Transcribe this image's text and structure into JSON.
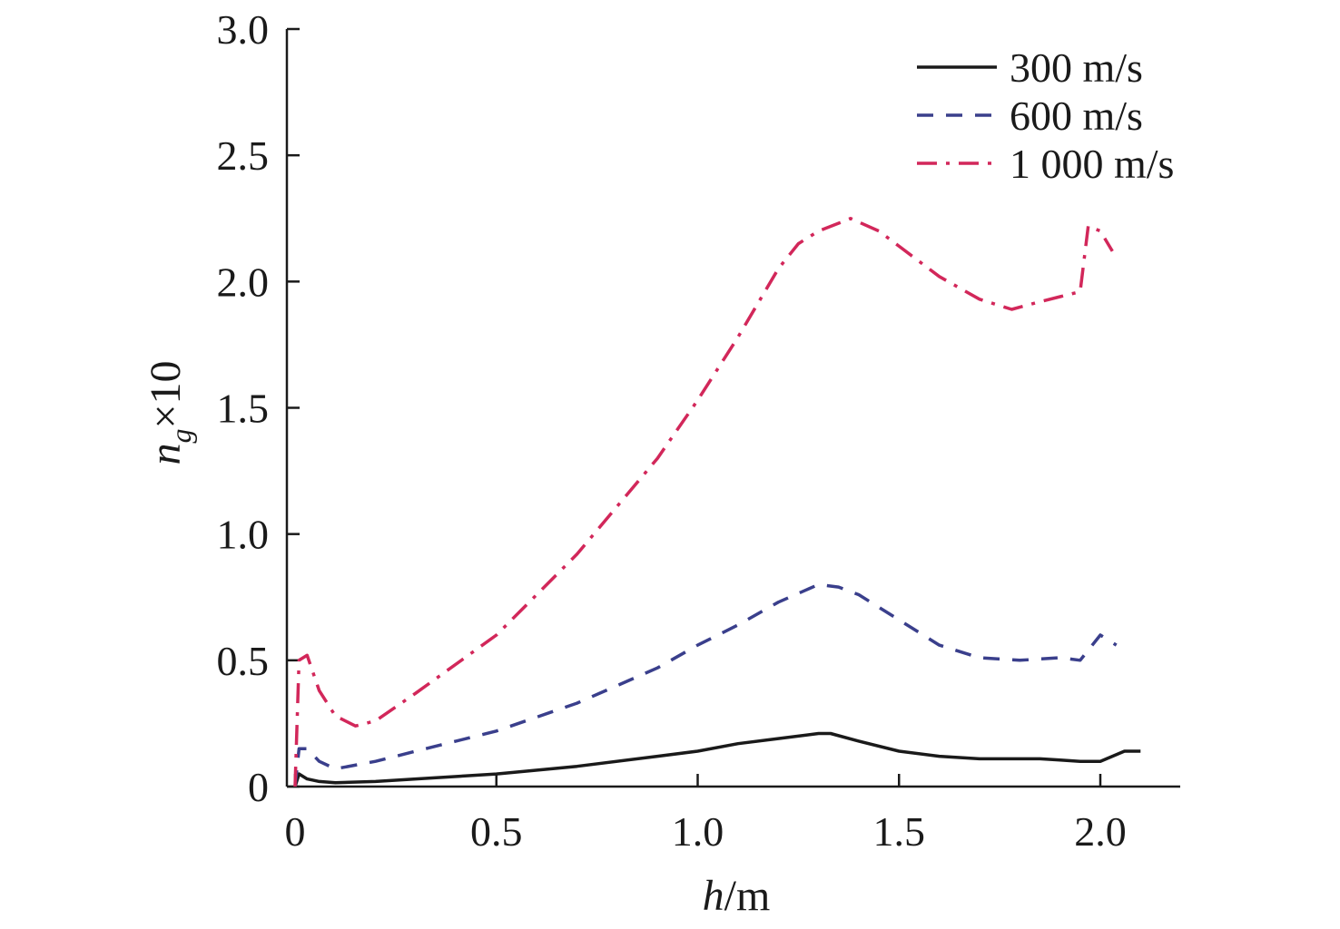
{
  "chart_data": {
    "type": "line",
    "title": "",
    "xlabel": {
      "italic": "h",
      "rest": "/m"
    },
    "ylabel": {
      "base": "n",
      "sub": "g",
      "suffix": "×10"
    },
    "xlim": [
      0,
      2.2
    ],
    "ylim": [
      0,
      3.0
    ],
    "xticks": [
      0,
      0.5,
      1.0,
      1.5,
      2.0
    ],
    "xtick_labels": [
      "0",
      "0.5",
      "1.0",
      "1.5",
      "2.0"
    ],
    "yticks": [
      0,
      0.5,
      1.0,
      1.5,
      2.0,
      2.5,
      3.0
    ],
    "ytick_labels": [
      "0",
      "0.5",
      "1.0",
      "1.5",
      "2.0",
      "2.5",
      "3.0"
    ],
    "grid": false,
    "legend_position": "top-right",
    "series": [
      {
        "name": "300 m/s",
        "color": "#1a1a1a",
        "dash": "solid",
        "x": [
          0.0,
          0.01,
          0.03,
          0.06,
          0.1,
          0.2,
          0.3,
          0.5,
          0.7,
          0.9,
          1.0,
          1.1,
          1.2,
          1.3,
          1.33,
          1.4,
          1.5,
          1.6,
          1.7,
          1.8,
          1.85,
          1.9,
          1.95,
          2.0,
          2.03,
          2.06,
          2.1
        ],
        "y": [
          0.0,
          0.05,
          0.03,
          0.02,
          0.015,
          0.02,
          0.03,
          0.05,
          0.08,
          0.12,
          0.14,
          0.17,
          0.19,
          0.21,
          0.21,
          0.18,
          0.14,
          0.12,
          0.11,
          0.11,
          0.11,
          0.105,
          0.1,
          0.1,
          0.12,
          0.14,
          0.14
        ]
      },
      {
        "name": "600 m/s",
        "color": "#3a3f8c",
        "dash": "dash",
        "x": [
          0.0,
          0.01,
          0.03,
          0.06,
          0.1,
          0.2,
          0.3,
          0.5,
          0.7,
          0.9,
          1.0,
          1.1,
          1.2,
          1.3,
          1.35,
          1.4,
          1.5,
          1.6,
          1.7,
          1.8,
          1.9,
          1.95,
          2.0,
          2.04
        ],
        "y": [
          0.0,
          0.15,
          0.15,
          0.1,
          0.07,
          0.1,
          0.14,
          0.22,
          0.33,
          0.47,
          0.56,
          0.64,
          0.73,
          0.8,
          0.79,
          0.76,
          0.66,
          0.56,
          0.51,
          0.5,
          0.51,
          0.5,
          0.6,
          0.56
        ]
      },
      {
        "name": "1 000 m/s",
        "color": "#d2275a",
        "dash": "dashdot",
        "x": [
          0.0,
          0.01,
          0.03,
          0.06,
          0.1,
          0.15,
          0.2,
          0.3,
          0.5,
          0.7,
          0.9,
          1.0,
          1.1,
          1.2,
          1.25,
          1.3,
          1.38,
          1.45,
          1.5,
          1.6,
          1.7,
          1.78,
          1.85,
          1.9,
          1.95,
          1.97,
          2.0,
          2.03
        ],
        "y": [
          0.0,
          0.5,
          0.52,
          0.38,
          0.28,
          0.24,
          0.26,
          0.37,
          0.6,
          0.92,
          1.3,
          1.53,
          1.78,
          2.05,
          2.15,
          2.2,
          2.25,
          2.2,
          2.14,
          2.02,
          1.93,
          1.89,
          1.92,
          1.94,
          1.96,
          2.22,
          2.2,
          2.12
        ]
      }
    ]
  }
}
